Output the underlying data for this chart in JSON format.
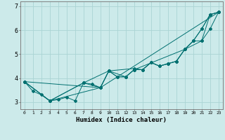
{
  "xlabel": "Humidex (Indice chaleur)",
  "ylabel": "",
  "bg_color": "#cceaea",
  "line_color": "#007070",
  "grid_color": "#aad4d4",
  "series1": [
    [
      0,
      3.85
    ],
    [
      1,
      3.45
    ],
    [
      2,
      3.3
    ],
    [
      3,
      3.05
    ],
    [
      4,
      3.1
    ],
    [
      5,
      3.2
    ],
    [
      6,
      3.05
    ],
    [
      7,
      3.8
    ],
    [
      8,
      3.75
    ],
    [
      9,
      3.6
    ],
    [
      10,
      4.3
    ],
    [
      11,
      4.05
    ],
    [
      12,
      4.05
    ],
    [
      13,
      4.35
    ],
    [
      14,
      4.35
    ],
    [
      15,
      4.65
    ],
    [
      16,
      4.5
    ],
    [
      17,
      4.6
    ],
    [
      18,
      4.7
    ],
    [
      19,
      5.2
    ],
    [
      20,
      5.55
    ],
    [
      21,
      6.05
    ],
    [
      22,
      6.65
    ],
    [
      23,
      6.75
    ]
  ],
  "series2": [
    [
      0,
      3.85
    ],
    [
      3,
      3.05
    ],
    [
      7,
      3.8
    ],
    [
      10,
      4.3
    ],
    [
      13,
      4.4
    ],
    [
      14,
      4.35
    ],
    [
      15,
      4.65
    ],
    [
      16,
      4.5
    ],
    [
      17,
      4.6
    ],
    [
      18,
      4.7
    ],
    [
      19,
      5.2
    ],
    [
      20,
      5.55
    ],
    [
      21,
      6.05
    ],
    [
      22,
      6.65
    ],
    [
      23,
      6.75
    ]
  ],
  "series3": [
    [
      0,
      3.85
    ],
    [
      3,
      3.05
    ],
    [
      9,
      3.6
    ],
    [
      23,
      6.75
    ]
  ],
  "series4": [
    [
      0,
      3.85
    ],
    [
      3,
      3.05
    ],
    [
      7,
      3.8
    ],
    [
      9,
      3.6
    ],
    [
      10,
      4.3
    ],
    [
      11,
      4.05
    ],
    [
      12,
      4.05
    ],
    [
      13,
      4.35
    ],
    [
      19,
      5.2
    ],
    [
      20,
      5.55
    ],
    [
      21,
      5.55
    ],
    [
      22,
      6.05
    ],
    [
      23,
      6.75
    ]
  ],
  "series5": [
    [
      0,
      3.85
    ],
    [
      9,
      3.6
    ],
    [
      10,
      4.3
    ],
    [
      12,
      4.05
    ],
    [
      13,
      4.35
    ],
    [
      14,
      4.35
    ],
    [
      15,
      4.65
    ],
    [
      16,
      4.5
    ],
    [
      17,
      4.6
    ],
    [
      18,
      4.7
    ],
    [
      19,
      5.2
    ],
    [
      21,
      5.55
    ],
    [
      22,
      6.65
    ],
    [
      23,
      6.75
    ]
  ],
  "xlim": [
    -0.5,
    23.5
  ],
  "ylim": [
    2.7,
    7.2
  ],
  "yticks": [
    3,
    4,
    5,
    6,
    7
  ],
  "xticks": [
    0,
    1,
    2,
    3,
    4,
    5,
    6,
    7,
    8,
    9,
    10,
    11,
    12,
    13,
    14,
    15,
    16,
    17,
    18,
    19,
    20,
    21,
    22,
    23
  ]
}
